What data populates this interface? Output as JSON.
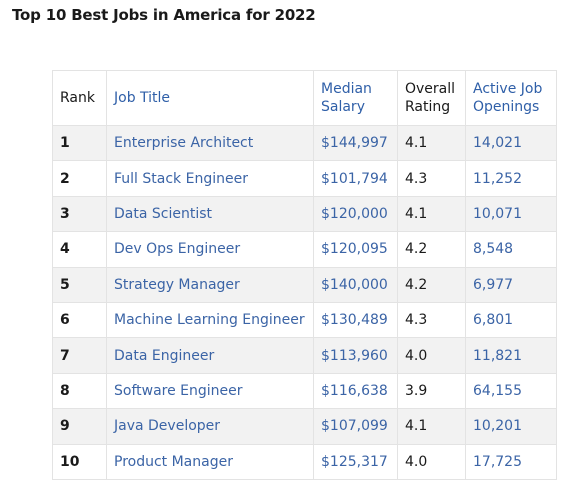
{
  "page": {
    "title": "Top 10 Best Jobs in America for 2022"
  },
  "table": {
    "headers": {
      "rank": "Rank",
      "job_title": "Job Title",
      "median_salary_line1": "Median",
      "median_salary_line2": "Salary",
      "overall_rating_line1": "Overall",
      "overall_rating_line2": "Rating",
      "active_openings_line1": "Active Job",
      "active_openings_line2": "Openings"
    },
    "rows": [
      {
        "rank": "1",
        "job_title": "Enterprise Architect",
        "median_salary": "$144,997",
        "overall_rating": "4.1",
        "active_openings": "14,021"
      },
      {
        "rank": "2",
        "job_title": "Full Stack Engineer",
        "median_salary": "$101,794",
        "overall_rating": "4.3",
        "active_openings": "11,252"
      },
      {
        "rank": "3",
        "job_title": "Data Scientist",
        "median_salary": "$120,000",
        "overall_rating": "4.1",
        "active_openings": "10,071"
      },
      {
        "rank": "4",
        "job_title": "Dev Ops Engineer",
        "median_salary": "$120,095",
        "overall_rating": "4.2",
        "active_openings": "8,548"
      },
      {
        "rank": "5",
        "job_title": "Strategy Manager",
        "median_salary": "$140,000",
        "overall_rating": "4.2",
        "active_openings": "6,977"
      },
      {
        "rank": "6",
        "job_title": "Machine Learning Engineer",
        "median_salary": "$130,489",
        "overall_rating": "4.3",
        "active_openings": "6,801"
      },
      {
        "rank": "7",
        "job_title": "Data Engineer",
        "median_salary": "$113,960",
        "overall_rating": "4.0",
        "active_openings": "11,821"
      },
      {
        "rank": "8",
        "job_title": "Software Engineer",
        "median_salary": "$116,638",
        "overall_rating": "3.9",
        "active_openings": "64,155"
      },
      {
        "rank": "9",
        "job_title": "Java Developer",
        "median_salary": "$107,099",
        "overall_rating": "4.1",
        "active_openings": "10,201"
      },
      {
        "rank": "10",
        "job_title": "Product Manager",
        "median_salary": "$125,317",
        "overall_rating": "4.0",
        "active_openings": "17,725"
      }
    ]
  },
  "colors": {
    "accent_blue": "#2f5fa8",
    "row_stripe": "#f2f2f2",
    "border": "#e3e3e3",
    "text": "#1a1a1a"
  }
}
